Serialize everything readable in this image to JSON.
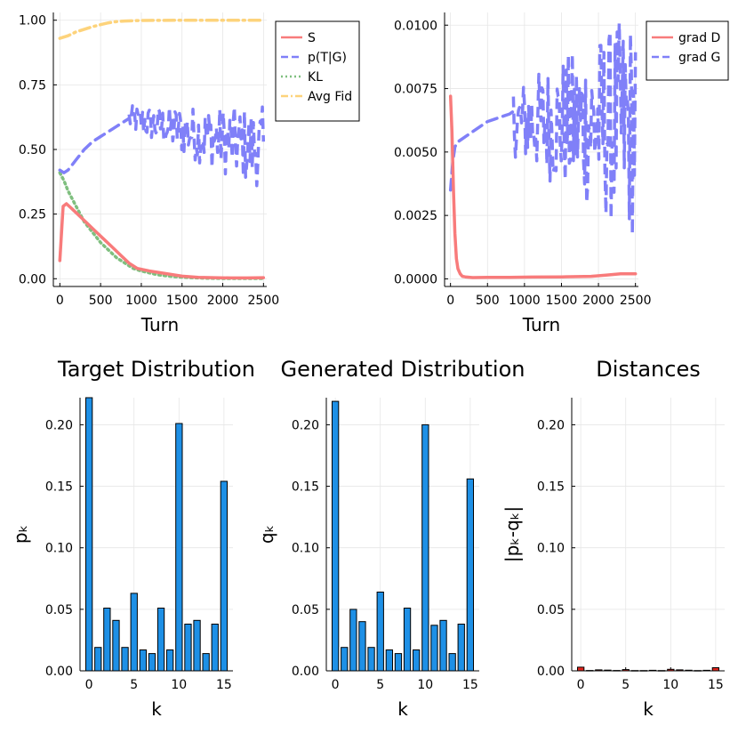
{
  "colors": {
    "S": "#f87b7b",
    "pTG": "#8080f8",
    "KL": "#7fbf7f",
    "AvgFid": "#fdd37b",
    "gradD": "#f87b7b",
    "gradG": "#8080f8",
    "bar": "#1e90e6",
    "dist": "#e0241c"
  },
  "chart_data": [
    {
      "id": "loss",
      "type": "line",
      "xlabel": "Turn",
      "xlim": [
        -80,
        2540
      ],
      "ylim": [
        -0.03,
        1.03
      ],
      "xticks": [
        0,
        500,
        1000,
        1500,
        2000,
        2500
      ],
      "xtick_labels": [
        "0",
        "500",
        "1000",
        "1500",
        "2000",
        "2500"
      ],
      "yticks": [
        0,
        0.25,
        0.5,
        0.75,
        1.0
      ],
      "ytick_labels": [
        "0.00",
        "0.25",
        "0.50",
        "0.75",
        "1.00"
      ],
      "legend_position": "top-right-outside",
      "series": [
        {
          "name": "S",
          "style": "solid",
          "color": "#f87b7b",
          "x": [
            0,
            40,
            80,
            150,
            250,
            350,
            450,
            550,
            650,
            750,
            850,
            950,
            1100,
            1300,
            1500,
            1700,
            1900,
            2100,
            2300,
            2500
          ],
          "y": [
            0.07,
            0.28,
            0.29,
            0.27,
            0.24,
            0.21,
            0.18,
            0.15,
            0.12,
            0.09,
            0.06,
            0.04,
            0.03,
            0.02,
            0.01,
            0.005,
            0.004,
            0.003,
            0.003,
            0.004
          ]
        },
        {
          "name": "p(T|G)",
          "style": "dash",
          "color": "#8080f8",
          "x": [
            0,
            50,
            100,
            200,
            300,
            400,
            500,
            600,
            700,
            800,
            850
          ],
          "y": [
            0.42,
            0.41,
            0.42,
            0.46,
            0.5,
            0.53,
            0.55,
            0.57,
            0.59,
            0.61,
            0.62
          ]
        },
        {
          "name": "KL",
          "style": "dot",
          "color": "#7fbf7f",
          "x": [
            0,
            50,
            100,
            200,
            300,
            400,
            500,
            600,
            700,
            800,
            900,
            1000,
            1200,
            1400,
            1600,
            1800,
            2000,
            2200,
            2500
          ],
          "y": [
            0.41,
            0.38,
            0.34,
            0.28,
            0.22,
            0.18,
            0.14,
            0.11,
            0.08,
            0.06,
            0.04,
            0.03,
            0.015,
            0.008,
            0.004,
            0.002,
            0.001,
            0.001,
            0.001
          ]
        },
        {
          "name": "Avg Fid",
          "style": "dashdot",
          "color": "#fdd37b",
          "x": [
            0,
            100,
            200,
            300,
            400,
            500,
            600,
            700,
            800,
            1000,
            1500,
            2000,
            2500
          ],
          "y": [
            0.93,
            0.94,
            0.955,
            0.965,
            0.975,
            0.983,
            0.99,
            0.995,
            0.997,
            0.999,
            1.0,
            1.0,
            1.0
          ]
        }
      ],
      "noisy_segment": {
        "series": "p(T|G)",
        "x_start": 850,
        "x_end": 2500,
        "y_min": 0.36,
        "y_max": 0.69,
        "trend_start": 0.62,
        "trend_end": 0.5
      }
    },
    {
      "id": "grad",
      "type": "line",
      "xlabel": "Turn",
      "xlim": [
        -80,
        2540
      ],
      "ylim": [
        -0.0003,
        0.0105
      ],
      "xticks": [
        0,
        500,
        1000,
        1500,
        2000,
        2500
      ],
      "xtick_labels": [
        "0",
        "500",
        "1000",
        "1500",
        "2000",
        "2500"
      ],
      "yticks": [
        0,
        0.0025,
        0.005,
        0.0075,
        0.01
      ],
      "ytick_labels": [
        "0.0000",
        "0.0025",
        "0.0050",
        "0.0075",
        "0.0100"
      ],
      "legend_position": "top-right",
      "series": [
        {
          "name": "grad D",
          "style": "solid",
          "color": "#f87b7b",
          "x": [
            0,
            20,
            40,
            60,
            80,
            100,
            130,
            160,
            200,
            300,
            500,
            800,
            1100,
            1500,
            1900,
            2100,
            2300,
            2500
          ],
          "y": [
            0.0072,
            0.0058,
            0.0035,
            0.0018,
            0.0008,
            0.0004,
            0.0002,
            0.0001,
            8e-05,
            5e-05,
            6e-05,
            6e-05,
            7e-05,
            8e-05,
            0.0001,
            0.00015,
            0.0002,
            0.0002
          ]
        },
        {
          "name": "grad G",
          "style": "dash",
          "color": "#8080f8",
          "x": [
            0,
            30,
            60,
            100,
            200,
            300,
            400,
            500,
            600,
            700,
            800,
            850
          ],
          "y": [
            0.0035,
            0.0046,
            0.0052,
            0.0054,
            0.0056,
            0.0058,
            0.006,
            0.0062,
            0.0063,
            0.0064,
            0.0065,
            0.0066
          ]
        }
      ],
      "noisy_segment": {
        "series": "grad G",
        "x_start": 850,
        "x_end": 2500,
        "y_min": 0.001,
        "y_max": 0.0101,
        "trend_start": 0.0062,
        "trend_end": 0.006
      }
    },
    {
      "id": "target",
      "type": "bar",
      "title": "Target Distribution",
      "xlabel": "k",
      "ylabel": "pₖ",
      "xlim": [
        -1,
        16
      ],
      "ylim": [
        0,
        0.222
      ],
      "xticks": [
        0,
        5,
        10,
        15
      ],
      "xtick_labels": [
        "0",
        "5",
        "10",
        "15"
      ],
      "yticks": [
        0,
        0.05,
        0.1,
        0.15,
        0.2
      ],
      "ytick_labels": [
        "0.00",
        "0.05",
        "0.10",
        "0.15",
        "0.20"
      ],
      "categories": [
        0,
        1,
        2,
        3,
        4,
        5,
        6,
        7,
        8,
        9,
        10,
        11,
        12,
        13,
        14,
        15
      ],
      "values": [
        0.222,
        0.019,
        0.051,
        0.041,
        0.019,
        0.063,
        0.017,
        0.014,
        0.051,
        0.017,
        0.201,
        0.038,
        0.041,
        0.014,
        0.038,
        0.154
      ]
    },
    {
      "id": "generated",
      "type": "bar",
      "title": "Generated Distribution",
      "xlabel": "k",
      "ylabel": "qₖ",
      "xlim": [
        -1,
        16
      ],
      "ylim": [
        0,
        0.222
      ],
      "xticks": [
        0,
        5,
        10,
        15
      ],
      "xtick_labels": [
        "0",
        "5",
        "10",
        "15"
      ],
      "yticks": [
        0,
        0.05,
        0.1,
        0.15,
        0.2
      ],
      "ytick_labels": [
        "0.00",
        "0.05",
        "0.10",
        "0.15",
        "0.20"
      ],
      "categories": [
        0,
        1,
        2,
        3,
        4,
        5,
        6,
        7,
        8,
        9,
        10,
        11,
        12,
        13,
        14,
        15
      ],
      "values": [
        0.219,
        0.019,
        0.05,
        0.04,
        0.019,
        0.064,
        0.017,
        0.014,
        0.051,
        0.017,
        0.2,
        0.037,
        0.041,
        0.014,
        0.038,
        0.156
      ]
    },
    {
      "id": "distances",
      "type": "bar",
      "title": "Distances",
      "xlabel": "k",
      "ylabel": "|pₖ-qₖ|",
      "xlim": [
        -1,
        16
      ],
      "ylim": [
        0,
        0.222
      ],
      "xticks": [
        0,
        5,
        10,
        15
      ],
      "xtick_labels": [
        "0",
        "5",
        "10",
        "15"
      ],
      "yticks": [
        0,
        0.05,
        0.1,
        0.15,
        0.2
      ],
      "ytick_labels": [
        "0.00",
        "0.05",
        "0.10",
        "0.15",
        "0.20"
      ],
      "categories": [
        0,
        1,
        2,
        3,
        4,
        5,
        6,
        7,
        8,
        9,
        10,
        11,
        12,
        13,
        14,
        15
      ],
      "values": [
        0.003,
        0.0003,
        0.0008,
        0.0006,
        0.0003,
        0.001,
        0.0002,
        0.0002,
        0.0004,
        0.0002,
        0.0012,
        0.0008,
        0.0005,
        0.0002,
        0.0004,
        0.0025
      ]
    }
  ]
}
